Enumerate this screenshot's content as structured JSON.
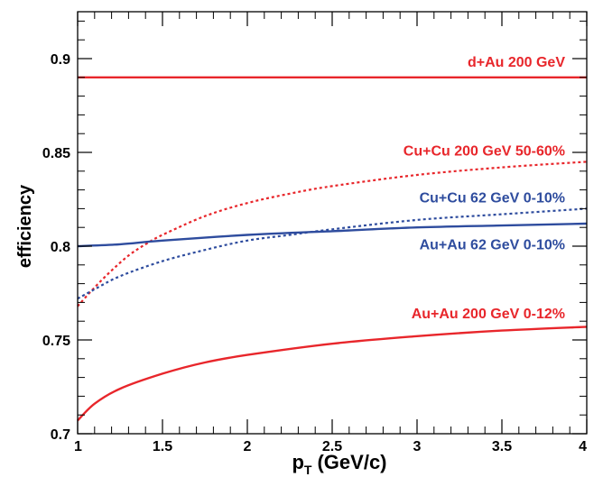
{
  "chart_data": {
    "type": "line",
    "title": "",
    "xlabel": "p",
    "xlabel_subscript": "T",
    "xlabel_unit": "(GeV/c)",
    "ylabel": "efficiency",
    "xlim": [
      1,
      4
    ],
    "ylim": [
      0.7,
      0.925
    ],
    "grid": false,
    "legend": "inline labels",
    "x_ticks": [
      1,
      1.5,
      2,
      2.5,
      3,
      3.5,
      4
    ],
    "x_tick_labels": [
      "1",
      "1.5",
      "2",
      "2.5",
      "3",
      "3.5",
      "4"
    ],
    "y_ticks": [
      0.7,
      0.75,
      0.8,
      0.85,
      0.9
    ],
    "y_tick_labels": [
      "0.7",
      "0.75",
      "0.8",
      "0.85",
      "0.9"
    ],
    "series": [
      {
        "name": "d+Au 200 GeV",
        "color": "#e8262b",
        "style": "solid",
        "x": [
          1,
          1.5,
          2,
          2.5,
          3,
          3.5,
          4
        ],
        "y": [
          0.89,
          0.89,
          0.89,
          0.89,
          0.89,
          0.89,
          0.89
        ]
      },
      {
        "name": "Cu+Cu 200 GeV 50-60%",
        "color": "#e8262b",
        "style": "dotted",
        "x": [
          1,
          1.1,
          1.2,
          1.3,
          1.4,
          1.5,
          1.75,
          2,
          2.25,
          2.5,
          3,
          3.5,
          4
        ],
        "y": [
          0.768,
          0.778,
          0.787,
          0.795,
          0.801,
          0.806,
          0.816,
          0.823,
          0.828,
          0.832,
          0.838,
          0.842,
          0.845
        ]
      },
      {
        "name": "Cu+Cu 62 GeV 0-10%",
        "color": "#2e4c9e",
        "style": "dotted",
        "x": [
          1,
          1.1,
          1.25,
          1.5,
          1.75,
          2,
          2.25,
          2.5,
          3,
          3.5,
          4
        ],
        "y": [
          0.772,
          0.777,
          0.784,
          0.792,
          0.798,
          0.803,
          0.806,
          0.809,
          0.814,
          0.817,
          0.82
        ]
      },
      {
        "name": "Au+Au 62 GeV 0-10%",
        "color": "#2e4c9e",
        "style": "solid",
        "x": [
          1,
          1.25,
          1.5,
          2,
          2.5,
          3,
          3.5,
          4
        ],
        "y": [
          0.8,
          0.801,
          0.803,
          0.806,
          0.808,
          0.81,
          0.811,
          0.812
        ]
      },
      {
        "name": "Au+Au 200 GeV 0-12%",
        "color": "#e8262b",
        "style": "solid",
        "x": [
          1,
          1.1,
          1.25,
          1.5,
          1.75,
          2,
          2.5,
          3,
          3.5,
          4
        ],
        "y": [
          0.707,
          0.716,
          0.724,
          0.732,
          0.738,
          0.742,
          0.748,
          0.752,
          0.755,
          0.757
        ]
      }
    ]
  }
}
